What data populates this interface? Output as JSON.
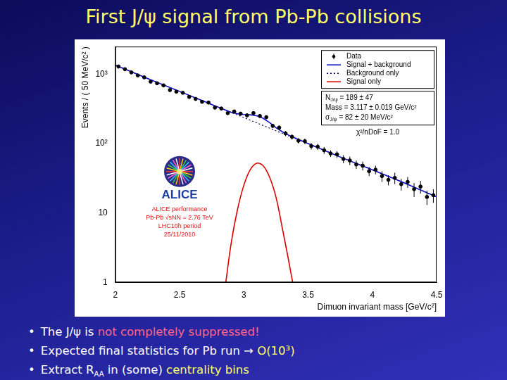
{
  "slide": {
    "title": "First J/ψ signal from Pb-Pb collisions",
    "bullets": [
      [
        {
          "text": "The J/ψ is "
        },
        {
          "text": "not completely suppressed!",
          "color": "#ff6688"
        }
      ],
      [
        {
          "text": "Expected final statistics for Pb run → "
        },
        {
          "text": "O(10³)",
          "color": "#ffff66"
        }
      ],
      [
        {
          "text": "Extract R"
        },
        {
          "text": "AA",
          "sub": true
        },
        {
          "text": " in (some) "
        },
        {
          "text": "centrality bins",
          "color": "#ffff66"
        }
      ]
    ]
  },
  "chart_data": {
    "type": "scatter",
    "x_label": "Dimuon invariant mass [GeV/c²]",
    "y_label": "Events / ( 50 MeV/c² )",
    "log": "y",
    "grid": false,
    "legend": "top right",
    "xlim": [
      2,
      4.5
    ],
    "xticks": [
      2,
      2.5,
      3,
      3.5,
      4,
      4.5
    ],
    "ylim": [
      1,
      2500
    ],
    "yticks": [
      1,
      10,
      {
        "value": 100,
        "label": "10²"
      },
      {
        "value": 1000,
        "label": "10³"
      }
    ],
    "series": [
      {
        "name": "Data",
        "type": "scatter",
        "marker": "circle",
        "color": "#000000",
        "x": [
          2.025,
          2.075,
          2.125,
          2.175,
          2.225,
          2.275,
          2.325,
          2.375,
          2.425,
          2.475,
          2.525,
          2.575,
          2.625,
          2.675,
          2.725,
          2.775,
          2.825,
          2.875,
          2.925,
          2.975,
          3.025,
          3.075,
          3.125,
          3.175,
          3.225,
          3.275,
          3.325,
          3.375,
          3.425,
          3.475,
          3.525,
          3.575,
          3.625,
          3.675,
          3.725,
          3.775,
          3.825,
          3.875,
          3.925,
          3.975,
          4.025,
          4.075,
          4.125,
          4.175,
          4.225,
          4.275,
          4.325,
          4.375,
          4.425,
          4.475
        ],
        "values": [
          1290,
          1180,
          1060,
          960,
          900,
          780,
          740,
          690,
          590,
          560,
          540,
          470,
          440,
          400,
          390,
          330,
          320,
          275,
          290,
          270,
          255,
          275,
          250,
          240,
          180,
          170,
          140,
          125,
          110,
          108,
          92,
          90,
          80,
          72,
          70,
          60,
          57,
          50,
          48,
          40,
          42,
          34,
          30,
          32,
          26,
          28,
          22,
          24,
          17,
          18
        ],
        "errors": [
          36,
          34,
          33,
          31,
          30,
          28,
          27,
          26,
          24,
          24,
          23,
          22,
          21,
          20,
          20,
          18,
          18,
          17,
          17,
          16,
          16,
          17,
          16,
          15,
          13,
          13,
          12,
          11,
          10,
          10,
          10,
          9,
          9,
          8,
          8,
          8,
          8,
          7,
          7,
          6,
          6,
          6,
          5,
          6,
          5,
          5,
          5,
          5,
          4,
          4
        ]
      },
      {
        "name": "Signal + background",
        "type": "line",
        "line_style": "solid",
        "color": "#1010d0",
        "x": [
          2.0,
          2.25,
          2.5,
          2.75,
          2.9,
          2.95,
          3.0,
          3.05,
          3.1,
          3.15,
          3.2,
          3.25,
          3.3,
          3.35,
          3.5,
          3.75,
          4.0,
          4.25,
          4.5
        ],
        "values": [
          1350,
          870,
          565,
          365,
          283,
          269,
          262,
          260,
          252,
          232,
          201,
          170,
          148,
          132,
          100,
          64,
          42,
          27,
          17
        ]
      },
      {
        "name": "Background only",
        "type": "line",
        "line_style": "dotted",
        "color": "#000060",
        "x": [
          2.0,
          2.25,
          2.5,
          2.75,
          3.0,
          3.25,
          3.5,
          3.75,
          4.0,
          4.25,
          4.5
        ],
        "values": [
          1350,
          870,
          565,
          365,
          237,
          153,
          100,
          64,
          42,
          27,
          17
        ]
      },
      {
        "name": "Signal only",
        "type": "line",
        "line_style": "solid",
        "color": "#dd0000",
        "x": [
          2.86,
          2.9,
          2.95,
          3.0,
          3.05,
          3.1,
          3.15,
          3.2,
          3.25,
          3.3,
          3.35,
          3.38
        ],
        "values": [
          1,
          3.5,
          11,
          25,
          42,
          52,
          48,
          33,
          17,
          6,
          2,
          1
        ]
      }
    ],
    "annotations": {
      "fit": [
        {
          "text": "N",
          "sub": "J/ψ",
          "rest": " = 189 ± 47"
        },
        {
          "text": "Mass = 3.117 ± 0.019 GeV/c²"
        },
        {
          "text": "σ",
          "sub": "J/ψ",
          "rest": " = 82 ± 20 MeV/c²"
        }
      ],
      "fit_quality": "χ²/nDoF = 1.0",
      "logo": "ALICE",
      "logo_lines": [
        "ALICE performance",
        "Pb-Pb √sNN = 2.76 TeV",
        "LHC10h period",
        "25/11/2010"
      ]
    }
  }
}
